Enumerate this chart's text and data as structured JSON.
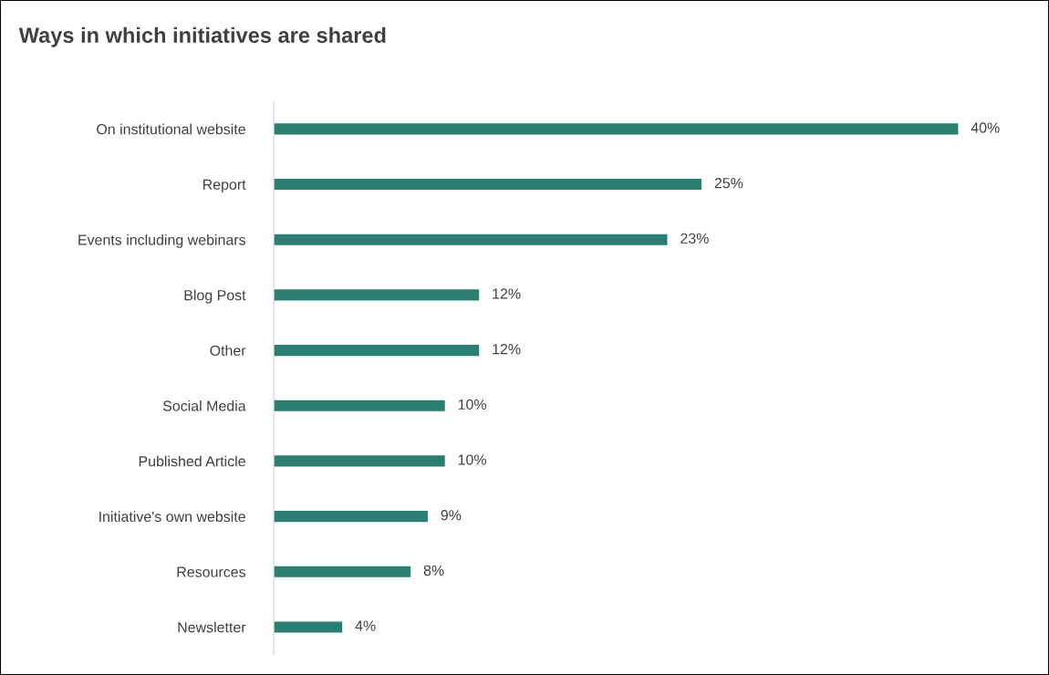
{
  "chart_data": {
    "type": "bar",
    "orientation": "horizontal",
    "title": "Ways in which initiatives are shared",
    "categories": [
      "On institutional website",
      "Report",
      "Events including webinars",
      "Blog Post",
      "Other",
      "Social Media",
      "Published Article",
      "Initiative's own website",
      "Resources",
      "Newsletter"
    ],
    "values": [
      40,
      25,
      23,
      12,
      12,
      10,
      10,
      9,
      8,
      4
    ],
    "value_labels": [
      "40%",
      "25%",
      "23%",
      "12%",
      "12%",
      "10%",
      "10%",
      "9%",
      "8%",
      "4%"
    ],
    "color": "#2a7f72",
    "grid": false,
    "legend": false
  }
}
